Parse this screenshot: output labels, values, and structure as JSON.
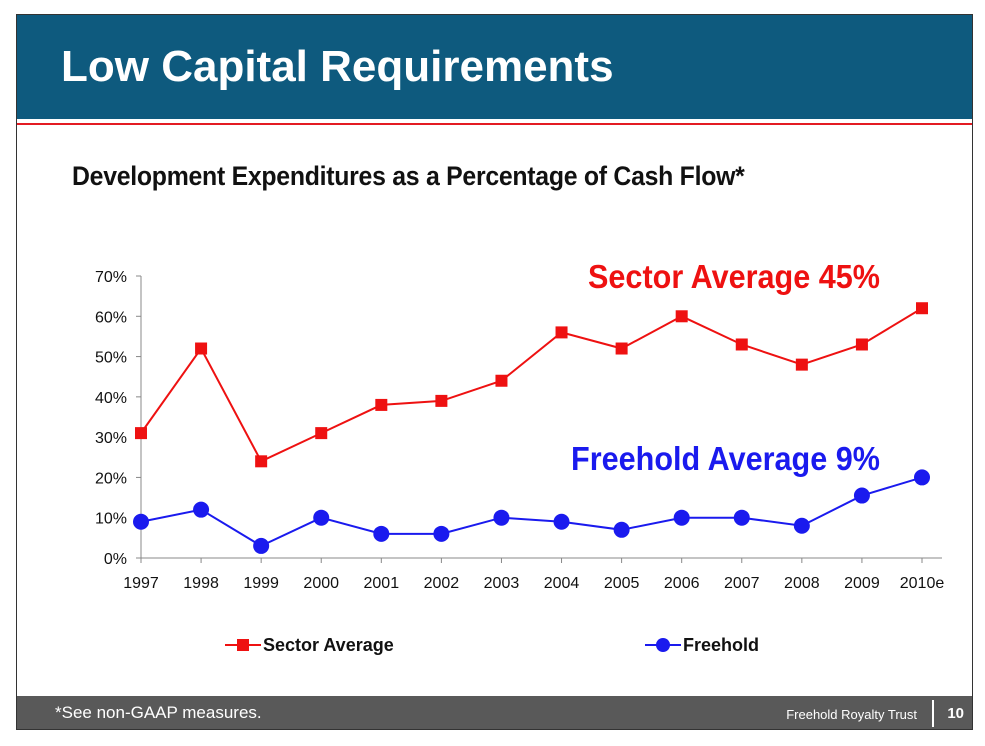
{
  "slide": {
    "title": "Low Capital Requirements",
    "footnote": "*See non-GAAP measures.",
    "organization": "Freehold Royalty Trust",
    "page_number": "10"
  },
  "colors": {
    "header_bg": "#0e5a7e",
    "divider": "#e31b23",
    "sector": "#ee1111",
    "freehold": "#1a1aee",
    "footer_bg": "#595959"
  },
  "chart_data": {
    "type": "line",
    "title": "Development Expenditures as a Percentage of Cash Flow*",
    "xlabel": "",
    "ylabel": "",
    "categories": [
      "1997",
      "1998",
      "1999",
      "2000",
      "2001",
      "2002",
      "2003",
      "2004",
      "2005",
      "2006",
      "2007",
      "2008",
      "2009",
      "2010e"
    ],
    "y_ticks": [
      "0%",
      "10%",
      "20%",
      "30%",
      "40%",
      "50%",
      "60%",
      "70%"
    ],
    "ylim": [
      0,
      70
    ],
    "grid": false,
    "legend_position": "bottom",
    "series": [
      {
        "name": "Sector Average",
        "marker": "square",
        "color": "#ee1111",
        "values": [
          31,
          52,
          24,
          31,
          38,
          39,
          44,
          56,
          52,
          60,
          53,
          48,
          53,
          62
        ]
      },
      {
        "name": "Freehold",
        "marker": "circle",
        "color": "#1a1aee",
        "values": [
          9,
          12,
          3,
          10,
          6,
          6,
          10,
          9,
          7,
          10,
          10,
          8,
          15.5,
          20
        ]
      }
    ],
    "annotations": [
      {
        "text": "Sector Average 45%",
        "color": "#ee1111",
        "series": "Sector Average"
      },
      {
        "text": "Freehold Average 9%",
        "color": "#1a1aee",
        "series": "Freehold"
      }
    ]
  }
}
